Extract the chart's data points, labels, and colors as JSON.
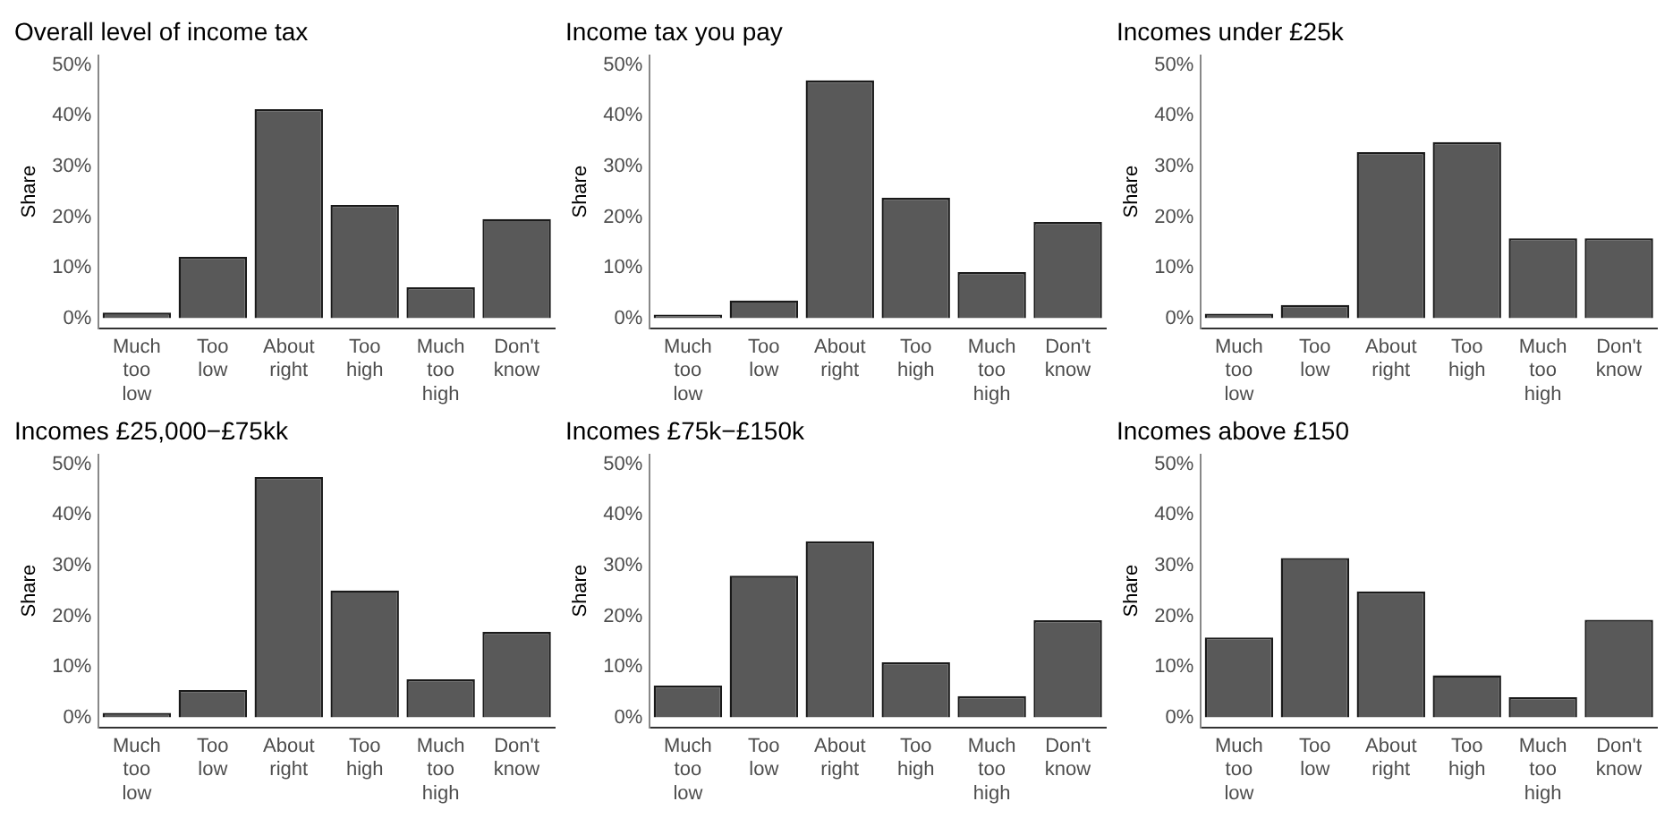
{
  "chart_data": [
    {
      "type": "bar",
      "title": "Overall level of income tax",
      "ylabel": "Share",
      "categories": [
        "Much too low",
        "Too low",
        "About right",
        "Too high",
        "Much too high",
        "Don't know"
      ],
      "color": "#595959",
      "values": [
        1.1,
        12.1,
        41.3,
        22.4,
        6.1,
        19.6
      ],
      "ylim": [
        -2,
        52
      ],
      "yticks": [
        {
          "value": 0,
          "label": "0%"
        },
        {
          "value": 10,
          "label": "10%"
        },
        {
          "value": 20,
          "label": "20%"
        },
        {
          "value": 30,
          "label": "30%"
        },
        {
          "value": 40,
          "label": "40%"
        },
        {
          "value": 50,
          "label": "50%"
        }
      ]
    },
    {
      "type": "bar",
      "title": "Income tax you pay",
      "ylabel": "Share",
      "categories": [
        "Much too low",
        "Too low",
        "About right",
        "Too high",
        "Much too high",
        "Don't know"
      ],
      "color": "#595959",
      "values": [
        0.7,
        3.5,
        47,
        23.8,
        9.1,
        19
      ],
      "ylim": [
        -2,
        52
      ],
      "yticks": [
        {
          "value": 0,
          "label": "0%"
        },
        {
          "value": 10,
          "label": "10%"
        },
        {
          "value": 20,
          "label": "20%"
        },
        {
          "value": 30,
          "label": "30%"
        },
        {
          "value": 40,
          "label": "40%"
        },
        {
          "value": 50,
          "label": "50%"
        }
      ]
    },
    {
      "type": "bar",
      "title": "Incomes under £25k",
      "ylabel": "Share",
      "categories": [
        "Much too low",
        "Too low",
        "About right",
        "Too high",
        "Much too high",
        "Don't know"
      ],
      "color": "#595959",
      "values": [
        0.9,
        2.6,
        32.8,
        34.8,
        15.8,
        15.8
      ],
      "ylim": [
        -2,
        52
      ],
      "yticks": [
        {
          "value": 0,
          "label": "0%"
        },
        {
          "value": 10,
          "label": "10%"
        },
        {
          "value": 20,
          "label": "20%"
        },
        {
          "value": 30,
          "label": "30%"
        },
        {
          "value": 40,
          "label": "40%"
        },
        {
          "value": 50,
          "label": "50%"
        }
      ]
    },
    {
      "type": "bar",
      "title": "Incomes £25,000−£75kk",
      "ylabel": "Share",
      "categories": [
        "Much too low",
        "Too low",
        "About right",
        "Too high",
        "Much too high",
        "Don't know"
      ],
      "color": "#595959",
      "values": [
        0.9,
        5.4,
        47.5,
        25.1,
        7.5,
        16.9
      ],
      "ylim": [
        -2,
        52
      ],
      "yticks": [
        {
          "value": 0,
          "label": "0%"
        },
        {
          "value": 10,
          "label": "10%"
        },
        {
          "value": 20,
          "label": "20%"
        },
        {
          "value": 30,
          "label": "30%"
        },
        {
          "value": 40,
          "label": "40%"
        },
        {
          "value": 50,
          "label": "50%"
        }
      ]
    },
    {
      "type": "bar",
      "title": "Incomes £75k−£150k",
      "ylabel": "Share",
      "categories": [
        "Much too low",
        "Too low",
        "About right",
        "Too high",
        "Much too high",
        "Don't know"
      ],
      "color": "#595959",
      "values": [
        6.3,
        28,
        34.8,
        10.9,
        4.2,
        19.2
      ],
      "ylim": [
        -2,
        52
      ],
      "yticks": [
        {
          "value": 0,
          "label": "0%"
        },
        {
          "value": 10,
          "label": "10%"
        },
        {
          "value": 20,
          "label": "20%"
        },
        {
          "value": 30,
          "label": "30%"
        },
        {
          "value": 40,
          "label": "40%"
        },
        {
          "value": 50,
          "label": "50%"
        }
      ]
    },
    {
      "type": "bar",
      "title": "Incomes above £150",
      "ylabel": "Share",
      "categories": [
        "Much too low",
        "Too low",
        "About right",
        "Too high",
        "Much too high",
        "Don't know"
      ],
      "color": "#595959",
      "values": [
        15.8,
        31.5,
        24.9,
        8.3,
        4,
        19.3
      ],
      "ylim": [
        -2,
        52
      ],
      "yticks": [
        {
          "value": 0,
          "label": "0%"
        },
        {
          "value": 10,
          "label": "10%"
        },
        {
          "value": 20,
          "label": "20%"
        },
        {
          "value": 30,
          "label": "30%"
        },
        {
          "value": 40,
          "label": "40%"
        },
        {
          "value": 50,
          "label": "50%"
        }
      ]
    }
  ]
}
